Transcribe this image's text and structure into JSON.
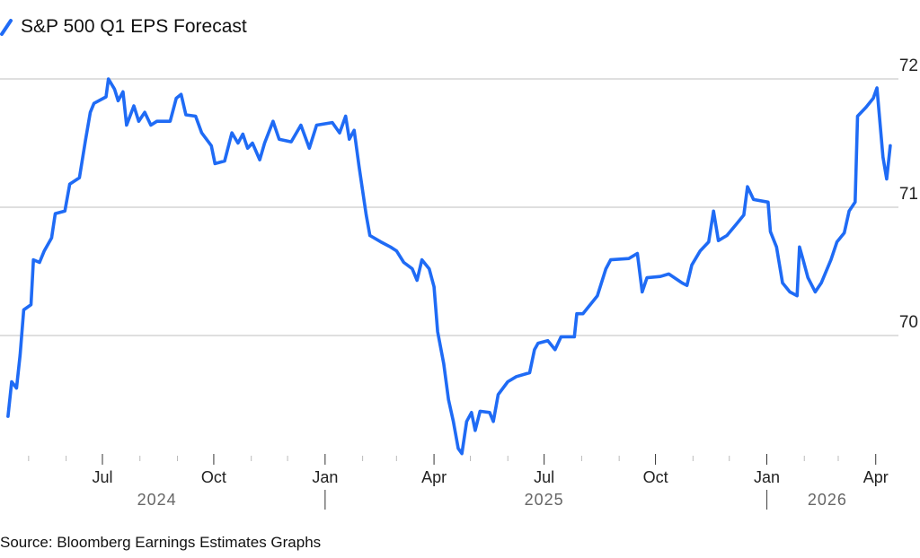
{
  "chart_data": {
    "type": "line",
    "title": "",
    "legend": {
      "placement": "top-left",
      "entries": [
        "S&P 500 Q1 EPS Forecast"
      ]
    },
    "source": "Source: Bloomberg Earnings Estimates Graphs",
    "xlabel": "",
    "ylabel": "",
    "ylim": [
      69.0,
      72.1
    ],
    "xlim": [
      "2024-04-14",
      "2026-04-20"
    ],
    "y_axis_side": "right",
    "y_ticks": [
      {
        "value": 72,
        "label": "72"
      },
      {
        "value": 71,
        "label": "71"
      },
      {
        "value": 70,
        "label": "70"
      }
    ],
    "grid": "horizontal",
    "x_month_ticks": [
      {
        "date": "2024-07-01",
        "label": "Jul"
      },
      {
        "date": "2024-10-01",
        "label": "Oct"
      },
      {
        "date": "2025-01-01",
        "label": "Jan"
      },
      {
        "date": "2025-04-01",
        "label": "Apr"
      },
      {
        "date": "2025-07-01",
        "label": "Jul"
      },
      {
        "date": "2025-10-01",
        "label": "Oct"
      },
      {
        "date": "2026-01-01",
        "label": "Jan"
      },
      {
        "date": "2026-04-01",
        "label": "Apr"
      }
    ],
    "x_year_labels": [
      {
        "date": "2024-08-15",
        "label": "2024"
      },
      {
        "date": "2025-07-01",
        "label": "2025"
      },
      {
        "date": "2026-02-20",
        "label": "2026"
      }
    ],
    "year_separators": [
      "2025-01-01",
      "2026-01-01"
    ],
    "colors": {
      "line": "#1f6bf5",
      "grid": "#cccccc",
      "tick": "#999999"
    },
    "series": [
      {
        "name": "S&P 500 Q1 EPS Forecast",
        "points": [
          [
            "2024-04-14",
            69.37
          ],
          [
            "2024-04-17",
            69.64
          ],
          [
            "2024-04-21",
            69.59
          ],
          [
            "2024-04-24",
            69.85
          ],
          [
            "2024-04-27",
            70.2
          ],
          [
            "2024-05-03",
            70.24
          ],
          [
            "2024-05-05",
            70.59
          ],
          [
            "2024-05-10",
            70.57
          ],
          [
            "2024-05-14",
            70.66
          ],
          [
            "2024-05-20",
            70.76
          ],
          [
            "2024-05-23",
            70.95
          ],
          [
            "2024-05-31",
            70.97
          ],
          [
            "2024-06-04",
            71.18
          ],
          [
            "2024-06-12",
            71.23
          ],
          [
            "2024-06-17",
            71.52
          ],
          [
            "2024-06-21",
            71.74
          ],
          [
            "2024-06-24",
            71.81
          ],
          [
            "2024-07-04",
            71.86
          ],
          [
            "2024-07-06",
            72.0
          ],
          [
            "2024-07-11",
            71.92
          ],
          [
            "2024-07-14",
            71.83
          ],
          [
            "2024-07-18",
            71.9
          ],
          [
            "2024-07-21",
            71.64
          ],
          [
            "2024-07-27",
            71.79
          ],
          [
            "2024-07-31",
            71.67
          ],
          [
            "2024-08-05",
            71.74
          ],
          [
            "2024-08-10",
            71.64
          ],
          [
            "2024-08-15",
            71.67
          ],
          [
            "2024-08-26",
            71.67
          ],
          [
            "2024-08-31",
            71.85
          ],
          [
            "2024-09-04",
            71.88
          ],
          [
            "2024-09-08",
            71.72
          ],
          [
            "2024-09-16",
            71.71
          ],
          [
            "2024-09-21",
            71.58
          ],
          [
            "2024-09-29",
            71.48
          ],
          [
            "2024-10-02",
            71.34
          ],
          [
            "2024-10-10",
            71.36
          ],
          [
            "2024-10-16",
            71.58
          ],
          [
            "2024-10-21",
            71.5
          ],
          [
            "2024-10-25",
            71.57
          ],
          [
            "2024-10-29",
            71.46
          ],
          [
            "2024-11-02",
            71.5
          ],
          [
            "2024-11-08",
            71.37
          ],
          [
            "2024-11-12",
            71.5
          ],
          [
            "2024-11-19",
            71.67
          ],
          [
            "2024-11-24",
            71.53
          ],
          [
            "2024-12-04",
            71.51
          ],
          [
            "2024-12-12",
            71.64
          ],
          [
            "2024-12-19",
            71.46
          ],
          [
            "2024-12-25",
            71.64
          ],
          [
            "2025-01-07",
            71.66
          ],
          [
            "2025-01-13",
            71.58
          ],
          [
            "2025-01-18",
            71.71
          ],
          [
            "2025-01-21",
            71.53
          ],
          [
            "2025-01-25",
            71.6
          ],
          [
            "2025-01-29",
            71.32
          ],
          [
            "2025-02-04",
            70.94
          ],
          [
            "2025-02-07",
            70.78
          ],
          [
            "2025-02-16",
            70.73
          ],
          [
            "2025-02-24",
            70.69
          ],
          [
            "2025-03-01",
            70.66
          ],
          [
            "2025-03-07",
            70.57
          ],
          [
            "2025-03-14",
            70.52
          ],
          [
            "2025-03-18",
            70.43
          ],
          [
            "2025-03-22",
            70.59
          ],
          [
            "2025-03-28",
            70.52
          ],
          [
            "2025-04-01",
            70.38
          ],
          [
            "2025-04-04",
            70.03
          ],
          [
            "2025-04-09",
            69.78
          ],
          [
            "2025-04-13",
            69.5
          ],
          [
            "2025-04-17",
            69.33
          ],
          [
            "2025-04-21",
            69.12
          ],
          [
            "2025-04-24",
            69.08
          ],
          [
            "2025-04-28",
            69.33
          ],
          [
            "2025-05-02",
            69.4
          ],
          [
            "2025-05-05",
            69.26
          ],
          [
            "2025-05-09",
            69.41
          ],
          [
            "2025-05-17",
            69.4
          ],
          [
            "2025-05-20",
            69.33
          ],
          [
            "2025-05-24",
            69.54
          ],
          [
            "2025-06-01",
            69.64
          ],
          [
            "2025-06-08",
            69.68
          ],
          [
            "2025-06-19",
            69.71
          ],
          [
            "2025-06-23",
            69.89
          ],
          [
            "2025-06-26",
            69.94
          ],
          [
            "2025-07-04",
            69.96
          ],
          [
            "2025-07-10",
            69.89
          ],
          [
            "2025-07-15",
            69.99
          ],
          [
            "2025-07-26",
            69.99
          ],
          [
            "2025-07-28",
            70.17
          ],
          [
            "2025-08-02",
            70.17
          ],
          [
            "2025-08-14",
            70.31
          ],
          [
            "2025-08-21",
            70.52
          ],
          [
            "2025-08-25",
            70.59
          ],
          [
            "2025-09-09",
            70.6
          ],
          [
            "2025-09-16",
            70.64
          ],
          [
            "2025-09-20",
            70.34
          ],
          [
            "2025-09-24",
            70.45
          ],
          [
            "2025-10-05",
            70.46
          ],
          [
            "2025-10-12",
            70.48
          ],
          [
            "2025-10-23",
            70.41
          ],
          [
            "2025-10-27",
            70.39
          ],
          [
            "2025-10-31",
            70.55
          ],
          [
            "2025-11-07",
            70.66
          ],
          [
            "2025-11-14",
            70.73
          ],
          [
            "2025-11-18",
            70.97
          ],
          [
            "2025-11-22",
            70.74
          ],
          [
            "2025-11-29",
            70.78
          ],
          [
            "2025-12-07",
            70.87
          ],
          [
            "2025-12-13",
            70.94
          ],
          [
            "2025-12-16",
            71.16
          ],
          [
            "2025-12-21",
            71.06
          ],
          [
            "2026-01-02",
            71.04
          ],
          [
            "2026-01-04",
            70.81
          ],
          [
            "2026-01-09",
            70.69
          ],
          [
            "2026-01-14",
            70.41
          ],
          [
            "2026-01-20",
            70.34
          ],
          [
            "2026-01-26",
            70.31
          ],
          [
            "2026-01-28",
            70.69
          ],
          [
            "2026-01-31",
            70.59
          ],
          [
            "2026-02-04",
            70.45
          ],
          [
            "2026-02-10",
            70.34
          ],
          [
            "2026-02-15",
            70.41
          ],
          [
            "2026-02-23",
            70.59
          ],
          [
            "2026-02-28",
            70.73
          ],
          [
            "2026-03-06",
            70.8
          ],
          [
            "2026-03-10",
            70.97
          ],
          [
            "2026-03-15",
            71.04
          ],
          [
            "2026-03-17",
            71.71
          ],
          [
            "2026-03-24",
            71.78
          ],
          [
            "2026-03-30",
            71.85
          ],
          [
            "2026-04-02",
            71.93
          ],
          [
            "2026-04-07",
            71.39
          ],
          [
            "2026-04-10",
            71.22
          ],
          [
            "2026-04-13",
            71.48
          ]
        ]
      }
    ]
  }
}
